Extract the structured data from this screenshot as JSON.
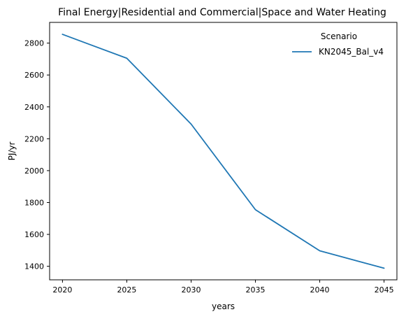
{
  "chart_data": {
    "type": "line",
    "title": "Final Energy|Residential and Commercial|Space and Water Heating",
    "xlabel": "years",
    "ylabel": "PJ/yr",
    "x": [
      2020,
      2025,
      2030,
      2035,
      2040,
      2045
    ],
    "series": [
      {
        "name": "KN2045_Bal_v4",
        "values": [
          2855,
          2705,
          2292,
          1755,
          1497,
          1388
        ],
        "color": "#1f77b4"
      }
    ],
    "xlim": [
      2019,
      2046
    ],
    "ylim": [
      1315,
      2930
    ],
    "xticks": [
      2020,
      2025,
      2030,
      2035,
      2040,
      2045
    ],
    "yticks": [
      1400,
      1600,
      1800,
      2000,
      2200,
      2400,
      2600,
      2800
    ],
    "legend": {
      "title": "Scenario",
      "placement": "top-right"
    },
    "grid": false
  }
}
